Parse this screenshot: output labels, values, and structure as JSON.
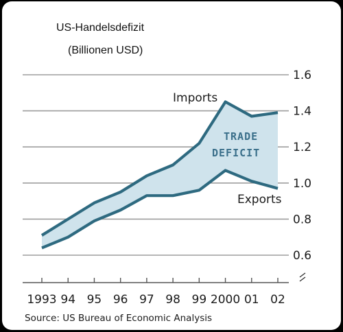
{
  "header": {
    "title": "US-Handelsdefizit",
    "subtitle": "(Billionen USD)"
  },
  "colors": {
    "line": "#2e6a80",
    "fill": "#cfe3ec",
    "grid": "#9e9e9e"
  },
  "chart_data": {
    "type": "area",
    "categories": [
      "1993",
      "94",
      "95",
      "96",
      "97",
      "98",
      "99",
      "2000",
      "01",
      "02"
    ],
    "series": [
      {
        "name": "Imports",
        "values": [
          0.71,
          0.8,
          0.89,
          0.95,
          1.04,
          1.1,
          1.22,
          1.45,
          1.37,
          1.39
        ]
      },
      {
        "name": "Exports",
        "values": [
          0.64,
          0.7,
          0.79,
          0.85,
          0.93,
          0.93,
          0.96,
          1.07,
          1.01,
          0.97
        ]
      }
    ],
    "area_label": [
      "TRADE",
      "DEFICIT"
    ],
    "y_ticks": [
      "0.6",
      "0.8",
      "1.0",
      "1.2",
      "1.4",
      "1.6"
    ],
    "ylim": [
      0.6,
      1.6
    ],
    "grid": true,
    "axis_break": true,
    "y_axis_position": "right",
    "source": "Source: US Bureau of Economic Analysis"
  }
}
